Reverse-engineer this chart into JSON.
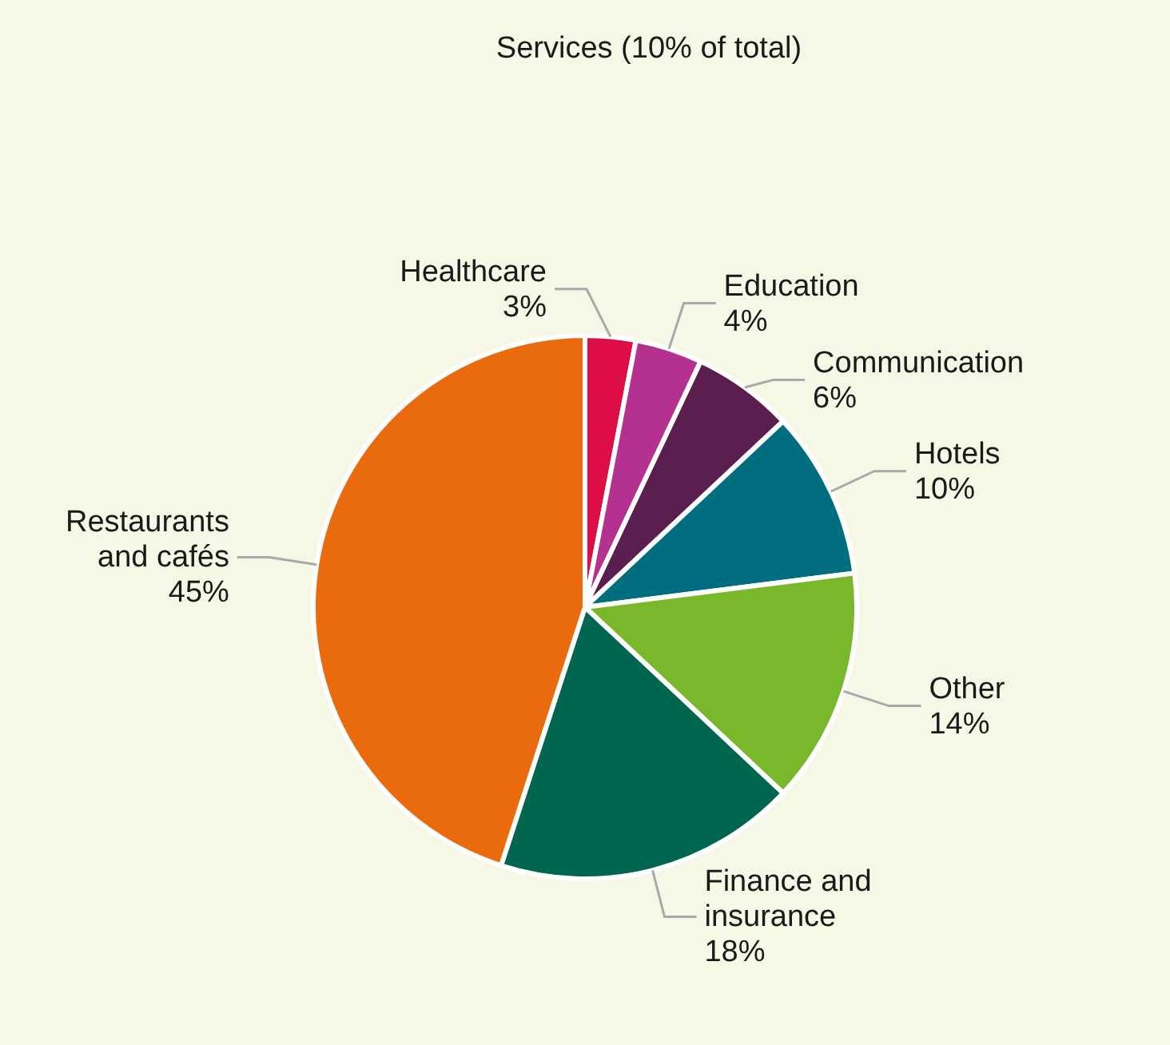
{
  "chart_data": {
    "type": "pie",
    "title": "Services (10% of total)",
    "categories": [
      "Healthcare",
      "Education",
      "Communication",
      "Hotels",
      "Other",
      "Finance and insurance",
      "Restaurants and cafés"
    ],
    "values": [
      3,
      4,
      6,
      10,
      14,
      18,
      45
    ],
    "value_labels": [
      "3%",
      "4%",
      "6%",
      "10%",
      "14%",
      "18%",
      "45%"
    ],
    "colors": [
      "#dc0e45",
      "#b5318f",
      "#5a1f4f",
      "#006e7f",
      "#78b82a",
      "#00664f",
      "#ea6b0e"
    ]
  }
}
